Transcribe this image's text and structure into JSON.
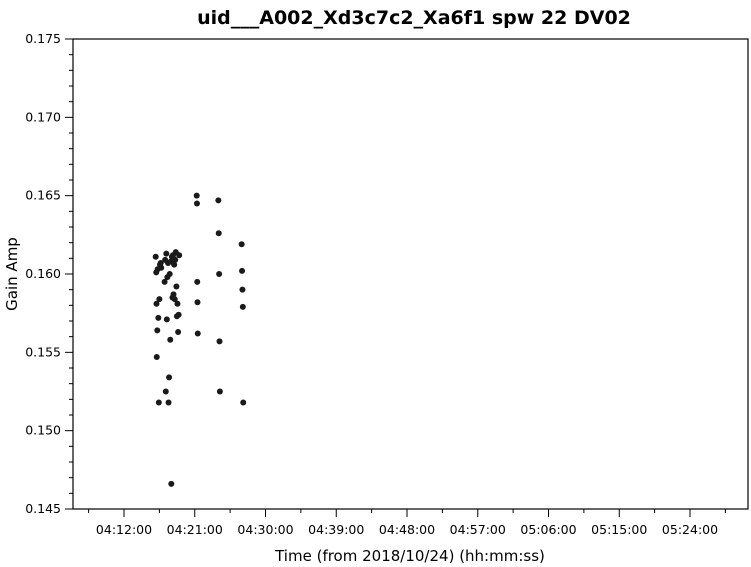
{
  "chart_data": {
    "type": "scatter",
    "title": "uid___A002_Xd3c7c2_Xa6f1 spw 22 DV02",
    "xlabel": "Time (from 2018/10/24) (hh:mm:ss)",
    "ylabel": "Gain Amp",
    "xlim": [
      "04:06:00",
      "04:30:00"
    ],
    "ylim": [
      0.145,
      0.175
    ],
    "x_ticks": [
      "04:12:00",
      "04:21:00",
      "04:30:00",
      "04:39:00",
      "04:48:00",
      "04:57:00",
      "05:06:00",
      "05:15:00",
      "05:24:00"
    ],
    "y_ticks": [
      "0.145",
      "0.150",
      "0.155",
      "0.160",
      "0.165",
      "0.170",
      "0.175"
    ],
    "grid": false,
    "marker_color": "#1a1a1a",
    "series": [
      {
        "points": [
          [
            "04:16:02",
            0.1611
          ],
          [
            "04:16:06",
            0.1601
          ],
          [
            "04:16:08",
            0.1581
          ],
          [
            "04:16:10",
            0.1547
          ],
          [
            "04:16:14",
            0.1564
          ],
          [
            "04:16:17",
            0.1603
          ],
          [
            "04:16:22",
            0.1572
          ],
          [
            "04:16:26",
            0.1518
          ],
          [
            "04:16:30",
            0.1584
          ],
          [
            "04:16:35",
            0.1606
          ],
          [
            "04:16:40",
            0.1607
          ],
          [
            "04:16:44",
            0.1604
          ],
          [
            "04:17:10",
            0.1595
          ],
          [
            "04:17:14",
            0.1609
          ],
          [
            "04:17:19",
            0.1525
          ],
          [
            "04:17:23",
            0.1613
          ],
          [
            "04:17:27",
            0.1571
          ],
          [
            "04:17:31",
            0.1598
          ],
          [
            "04:17:36",
            0.1607
          ],
          [
            "04:17:40",
            0.1518
          ],
          [
            "04:17:44",
            0.1534
          ],
          [
            "04:17:49",
            0.16
          ],
          [
            "04:17:53",
            0.1558
          ],
          [
            "04:17:57",
            0.1608
          ],
          [
            "04:18:01",
            0.1466
          ],
          [
            "04:18:06",
            0.1611
          ],
          [
            "04:18:10",
            0.1585
          ],
          [
            "04:18:14",
            0.1612
          ],
          [
            "04:18:18",
            0.1587
          ],
          [
            "04:18:23",
            0.1606
          ],
          [
            "04:18:27",
            0.1584
          ],
          [
            "04:18:31",
            0.1609
          ],
          [
            "04:18:35",
            0.1614
          ],
          [
            "04:18:40",
            0.1592
          ],
          [
            "04:18:44",
            0.1573
          ],
          [
            "04:18:48",
            0.1581
          ],
          [
            "04:18:53",
            0.1563
          ],
          [
            "04:18:57",
            0.1574
          ],
          [
            "04:19:01",
            0.1612
          ],
          [
            "04:21:15",
            0.165
          ],
          [
            "04:21:17",
            0.1645
          ],
          [
            "04:21:19",
            0.1595
          ],
          [
            "04:21:21",
            0.1582
          ],
          [
            "04:21:23",
            0.1562
          ],
          [
            "04:24:00",
            0.1647
          ],
          [
            "04:24:03",
            0.1626
          ],
          [
            "04:24:06",
            0.16
          ],
          [
            "04:24:09",
            0.1557
          ],
          [
            "04:24:12",
            0.1525
          ],
          [
            "04:26:58",
            0.1619
          ],
          [
            "04:27:01",
            0.1602
          ],
          [
            "04:27:04",
            0.159
          ],
          [
            "04:27:07",
            0.1579
          ],
          [
            "04:27:10",
            0.1518
          ]
        ]
      }
    ]
  }
}
